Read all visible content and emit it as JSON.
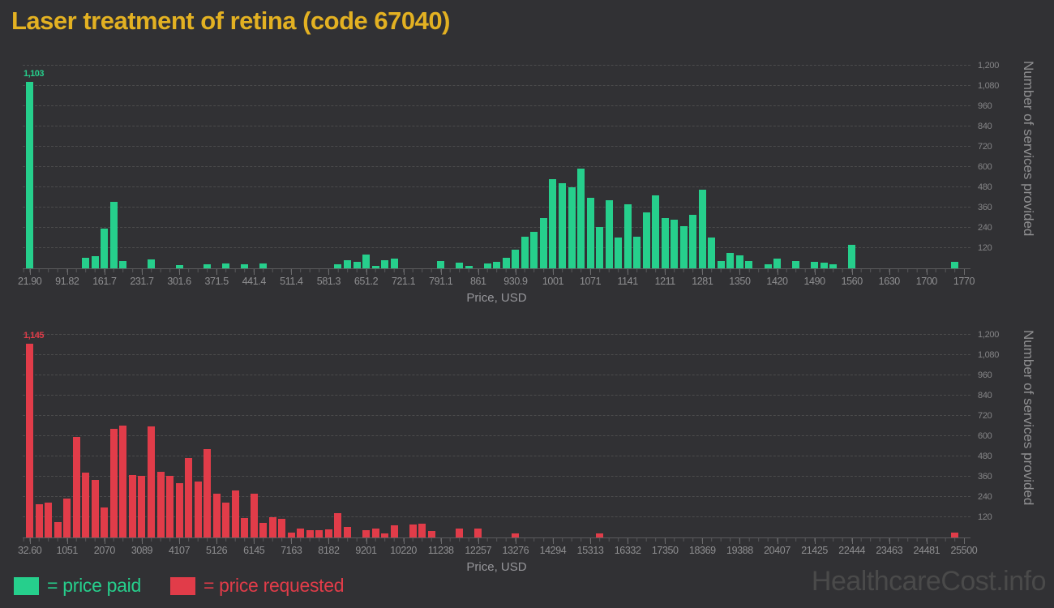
{
  "title": "Laser treatment of retina (code 67040)",
  "watermark": "HealthcareCost.info",
  "legend": {
    "paid_label": "= price paid",
    "requested_label": "= price requested"
  },
  "colors": {
    "background": "#313134",
    "title": "#e3b122",
    "price_paid": "#26cf8c",
    "price_requested": "#e13c49",
    "axis_text": "#8e8e90",
    "grid": "#4b4b4c",
    "watermark": "#4a4a4a"
  },
  "chart_data": [
    {
      "type": "bar",
      "name": "price_paid_histogram",
      "legend_entry": "= price paid",
      "xlabel": "Price, USD",
      "ylabel": "Number of services provided",
      "x_range": [
        21.9,
        1770
      ],
      "ylim": [
        0,
        1229
      ],
      "grid": "on",
      "legend_position": "bottom-left",
      "bin_count": 100,
      "peak_label": "1,103",
      "x_tick_labels": [
        "21.90",
        "91.82",
        "161.7",
        "231.7",
        "301.6",
        "371.5",
        "441.4",
        "511.4",
        "581.3",
        "651.2",
        "721.1",
        "791.1",
        "861",
        "930.9",
        "1001",
        "1071",
        "1141",
        "1211",
        "1281",
        "1350",
        "1420",
        "1490",
        "1560",
        "1630",
        "1700",
        "1770"
      ],
      "y_tick_labels": [
        "120",
        "240",
        "360",
        "480",
        "600",
        "720",
        "840",
        "960",
        "1,080",
        "1,200"
      ],
      "values": [
        1103,
        0,
        0,
        0,
        0,
        0,
        62,
        72,
        235,
        394,
        43,
        0,
        0,
        53,
        0,
        0,
        21,
        0,
        0,
        24,
        0,
        29,
        0,
        24,
        0,
        29,
        0,
        0,
        0,
        0,
        0,
        0,
        0,
        24,
        49,
        37,
        81,
        14,
        49,
        58,
        0,
        0,
        0,
        0,
        42,
        0,
        33,
        14,
        0,
        29,
        38,
        61,
        109,
        189,
        218,
        296,
        530,
        506,
        478,
        592,
        416,
        246,
        402,
        181,
        379,
        186,
        330,
        430,
        298,
        286,
        248,
        315,
        467,
        184,
        43,
        92,
        77,
        43,
        0,
        22,
        58,
        0,
        43,
        0,
        37,
        32,
        24,
        0,
        139,
        0,
        0,
        0,
        0,
        0,
        0,
        0,
        0,
        0,
        0,
        37
      ]
    },
    {
      "type": "bar",
      "name": "price_requested_histogram",
      "legend_entry": "= price requested",
      "xlabel": "Price, USD",
      "ylabel": "Number of services provided",
      "x_range": [
        32.6,
        25500
      ],
      "ylim": [
        0,
        1229
      ],
      "grid": "on",
      "legend_position": "bottom-left",
      "bin_count": 100,
      "peak_label": "1,145",
      "x_tick_labels": [
        "32.60",
        "1051",
        "2070",
        "3089",
        "4107",
        "5126",
        "6145",
        "7163",
        "8182",
        "9201",
        "10220",
        "11238",
        "12257",
        "13276",
        "14294",
        "15313",
        "16332",
        "17350",
        "18369",
        "19388",
        "20407",
        "21425",
        "22444",
        "23463",
        "24481",
        "25500"
      ],
      "y_tick_labels": [
        "120",
        "240",
        "360",
        "480",
        "600",
        "720",
        "840",
        "960",
        "1,080",
        "1,200"
      ],
      "values": [
        1145,
        198,
        208,
        90,
        232,
        595,
        384,
        342,
        179,
        643,
        664,
        371,
        365,
        659,
        387,
        365,
        320,
        469,
        331,
        525,
        259,
        205,
        280,
        115,
        261,
        88,
        122,
        110,
        30,
        54,
        43,
        42,
        46,
        146,
        62,
        0,
        43,
        54,
        22,
        70,
        0,
        78,
        82,
        38,
        0,
        0,
        51,
        0,
        54,
        0,
        0,
        0,
        26,
        0,
        0,
        0,
        0,
        0,
        0,
        0,
        0,
        26,
        0,
        0,
        0,
        0,
        0,
        0,
        0,
        0,
        0,
        0,
        0,
        0,
        0,
        0,
        0,
        0,
        0,
        0,
        0,
        0,
        0,
        0,
        0,
        0,
        0,
        0,
        0,
        0,
        0,
        0,
        0,
        0,
        0,
        0,
        0,
        0,
        0,
        29
      ]
    }
  ]
}
